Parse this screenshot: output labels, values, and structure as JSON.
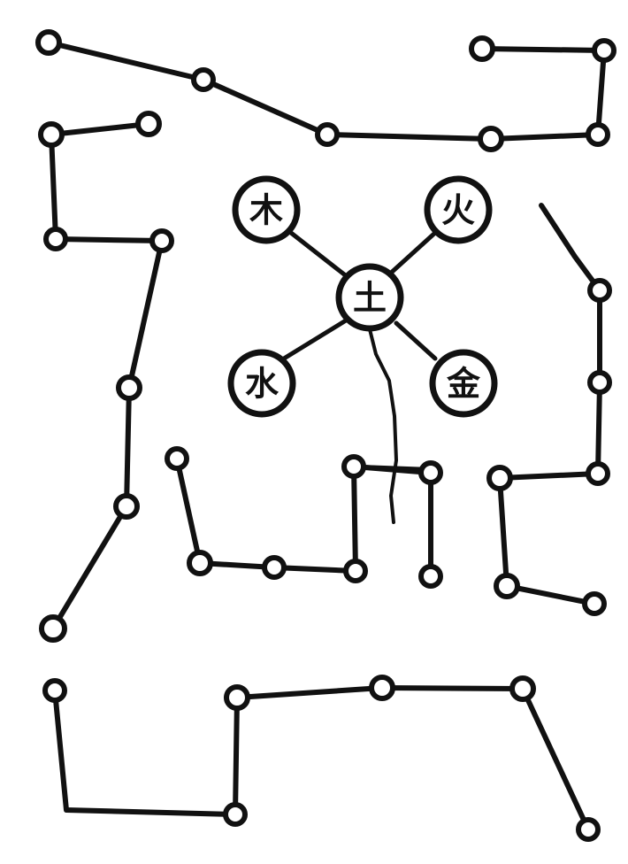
{
  "elements": {
    "wood": "木",
    "fire": "火",
    "earth": "土",
    "water": "水",
    "metal": "金"
  },
  "colors": {
    "ink": "#111111",
    "paper": "#ffffff"
  }
}
